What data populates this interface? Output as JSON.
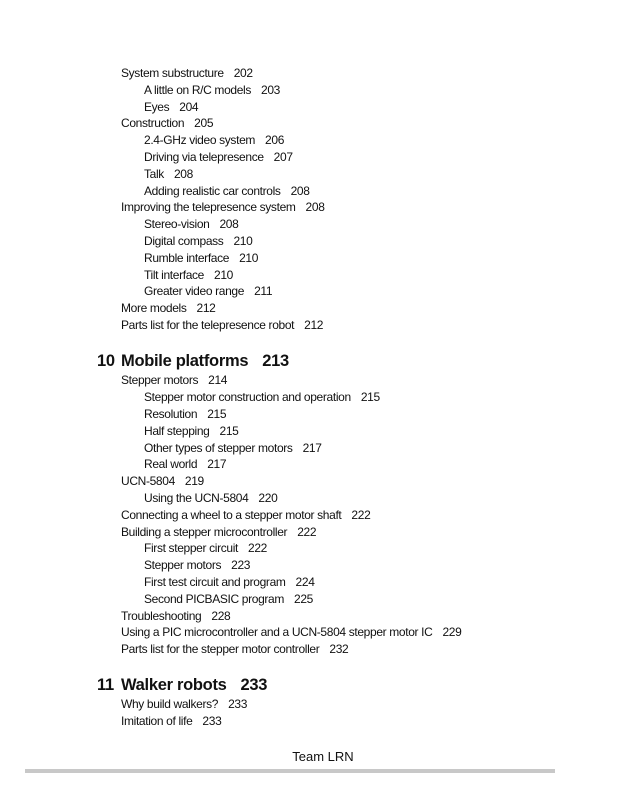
{
  "blocks": [
    {
      "entries": [
        {
          "level": 1,
          "text": "System substructure",
          "page": "202"
        },
        {
          "level": 2,
          "text": "A little on R/C models",
          "page": "203"
        },
        {
          "level": 2,
          "text": "Eyes",
          "page": "204"
        },
        {
          "level": 1,
          "text": "Construction",
          "page": "205"
        },
        {
          "level": 2,
          "text": "2.4-GHz video system",
          "page": "206"
        },
        {
          "level": 2,
          "text": "Driving via telepresence",
          "page": "207"
        },
        {
          "level": 2,
          "text": "Talk",
          "page": "208"
        },
        {
          "level": 2,
          "text": "Adding realistic car controls",
          "page": "208"
        },
        {
          "level": 1,
          "text": "Improving the telepresence system",
          "page": "208"
        },
        {
          "level": 2,
          "text": "Stereo-vision",
          "page": "208"
        },
        {
          "level": 2,
          "text": "Digital compass",
          "page": "210"
        },
        {
          "level": 2,
          "text": "Rumble interface",
          "page": "210"
        },
        {
          "level": 2,
          "text": "Tilt interface",
          "page": "210"
        },
        {
          "level": 2,
          "text": "Greater video range",
          "page": "211"
        },
        {
          "level": 1,
          "text": "More models",
          "page": "212"
        },
        {
          "level": 1,
          "text": "Parts list for the telepresence robot",
          "page": "212"
        }
      ]
    },
    {
      "chapter": {
        "number": "10",
        "title": "Mobile platforms",
        "page": "213"
      },
      "entries": [
        {
          "level": 1,
          "text": "Stepper motors",
          "page": "214"
        },
        {
          "level": 2,
          "text": "Stepper motor construction and operation",
          "page": "215"
        },
        {
          "level": 2,
          "text": "Resolution",
          "page": "215"
        },
        {
          "level": 2,
          "text": "Half stepping",
          "page": "215"
        },
        {
          "level": 2,
          "text": "Other types of stepper motors",
          "page": "217"
        },
        {
          "level": 2,
          "text": "Real world",
          "page": "217"
        },
        {
          "level": 1,
          "text": "UCN-5804",
          "page": "219"
        },
        {
          "level": 2,
          "text": "Using the UCN-5804",
          "page": "220"
        },
        {
          "level": 1,
          "text": "Connecting a wheel to a stepper motor shaft",
          "page": "222"
        },
        {
          "level": 1,
          "text": "Building a stepper microcontroller",
          "page": "222"
        },
        {
          "level": 2,
          "text": "First stepper circuit",
          "page": "222"
        },
        {
          "level": 2,
          "text": "Stepper motors",
          "page": "223"
        },
        {
          "level": 2,
          "text": "First test circuit and program",
          "page": "224"
        },
        {
          "level": 2,
          "text": "Second PICBASIC program",
          "page": "225"
        },
        {
          "level": 1,
          "text": "Troubleshooting",
          "page": "228"
        },
        {
          "level": 1,
          "text": "Using a PIC microcontroller and a UCN-5804 stepper motor IC",
          "page": "229"
        },
        {
          "level": 1,
          "text": "Parts list for the stepper motor controller",
          "page": "232"
        }
      ]
    },
    {
      "chapter": {
        "number": "11",
        "title": "Walker robots",
        "page": "233"
      },
      "entries": [
        {
          "level": 1,
          "text": "Why build walkers?",
          "page": "233"
        },
        {
          "level": 1,
          "text": "Imitation of life",
          "page": "233"
        }
      ]
    }
  ],
  "footer": {
    "text": "Team LRN"
  }
}
